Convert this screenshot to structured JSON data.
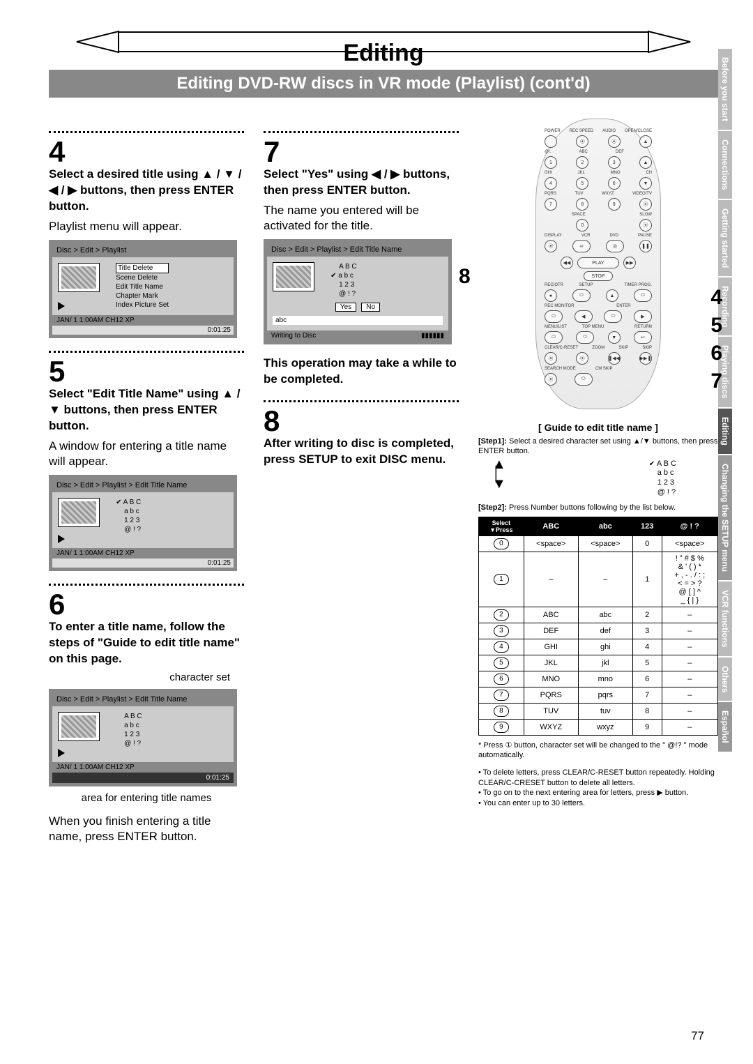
{
  "title": "Editing",
  "subtitle": "Editing DVD-RW discs in VR mode (Playlist) (cont'd)",
  "page_number": "77",
  "side_tabs": [
    {
      "label": "Before you start",
      "cls": "tab-light"
    },
    {
      "label": "Connections",
      "cls": "tab-light"
    },
    {
      "label": "Getting started",
      "cls": "tab-light"
    },
    {
      "label": "Recording",
      "cls": "tab-light"
    },
    {
      "label": "Playing discs",
      "cls": "tab-light"
    },
    {
      "label": "Editing",
      "cls": "tab-dark"
    },
    {
      "label": "Changing the SETUP menu",
      "cls": "tab-mid"
    },
    {
      "label": "VCR functions",
      "cls": "tab-light"
    },
    {
      "label": "Others",
      "cls": "tab-light"
    },
    {
      "label": "Español",
      "cls": "tab-mid"
    }
  ],
  "steps": {
    "4": {
      "heading": "Select a desired title using ▲ / ▼ / ◀ / ▶ buttons, then press ENTER button.",
      "body": "Playlist menu will appear."
    },
    "5": {
      "heading": "Select \"Edit Title Name\" using ▲ / ▼ buttons, then press ENTER button.",
      "body": "A window for entering a title name will appear."
    },
    "6": {
      "heading": "To enter a title name, follow the steps of \"Guide to edit title name\" on this page.",
      "caption1": "character set",
      "caption2": "area for entering title names",
      "body": "When you finish entering a title name, press ENTER button."
    },
    "7": {
      "heading": "Select \"Yes\" using ◀ / ▶ buttons, then press ENTER button.",
      "body": "The name you entered will be activated for the title.",
      "warning": "This operation may take a while to be completed."
    },
    "8": {
      "heading": "After writing to disc is completed, press SETUP to exit DISC menu."
    }
  },
  "ui_box_4": {
    "breadcrumb": "Disc > Edit > Playlist",
    "items": [
      "Title Delete",
      "Scene Delete",
      "Edit Title Name",
      "Chapter Mark",
      "Index Picture Set"
    ],
    "footer": "JAN/ 1   1:00AM  CH12    XP",
    "time": "0:01:25"
  },
  "ui_box_5": {
    "breadcrumb": "Disc > Edit > Playlist > Edit Title Name",
    "charset": [
      "A B C",
      "a b c",
      "1 2 3",
      "@ ! ?"
    ],
    "footer": "JAN/ 1   1:00AM  CH12   XP",
    "time": "0:01:25"
  },
  "ui_box_6": {
    "breadcrumb": "Disc > Edit  > Playlist > Edit Title Name",
    "charset": [
      "A B C",
      "a b c",
      "1 2 3",
      "@ ! ?"
    ],
    "footer": "JAN/ 1   1:00AM  CH12   XP",
    "time": "0:01:25"
  },
  "ui_box_7": {
    "breadcrumb": "Disc > Edit > Playlist > Edit Title Name",
    "charset": [
      "A B C",
      "a b c",
      "1 2 3",
      "@ ! ?"
    ],
    "yes": "Yes",
    "no": "No",
    "input": "abc",
    "status": "Writing to Disc"
  },
  "guide": {
    "title": "[ Guide to edit title name ]",
    "step1_a": "[Step1]: ",
    "step1_b": "Select a desired character set using ▲/▼ buttons, then press ENTER button.",
    "charset": [
      "A B C",
      "a b c",
      "1 2 3",
      "@ ! ?"
    ],
    "step2_a": "[Step2]: ",
    "step2_b": "Press Number buttons following by the list below.",
    "table_header": [
      "ABC",
      "abc",
      "123",
      "@ ! ?"
    ],
    "table_diag": "Select\n▼Press",
    "rows": [
      {
        "n": "0",
        "c": [
          "<space>",
          "<space>",
          "0",
          "<space>"
        ]
      },
      {
        "n": "1",
        "c": [
          "–",
          "–",
          "1",
          "! \" # $ %\n& ' ( ) *\n+ , - . / : ;\n< = > ?\n@ [ ] ^\n_ { | }"
        ]
      },
      {
        "n": "2",
        "c": [
          "ABC",
          "abc",
          "2",
          "–"
        ]
      },
      {
        "n": "3",
        "c": [
          "DEF",
          "def",
          "3",
          "–"
        ]
      },
      {
        "n": "4",
        "c": [
          "GHI",
          "ghi",
          "4",
          "–"
        ]
      },
      {
        "n": "5",
        "c": [
          "JKL",
          "jkl",
          "5",
          "–"
        ]
      },
      {
        "n": "6",
        "c": [
          "MNO",
          "mno",
          "6",
          "–"
        ]
      },
      {
        "n": "7",
        "c": [
          "PQRS",
          "pqrs",
          "7",
          "–"
        ]
      },
      {
        "n": "8",
        "c": [
          "TUV",
          "tuv",
          "8",
          "–"
        ]
      },
      {
        "n": "9",
        "c": [
          "WXYZ",
          "wxyz",
          "9",
          "–"
        ]
      }
    ],
    "asterisk": "* Press ① button, character set will be changed to the \" @!? \" mode automatically.",
    "bullets": [
      "To delete letters, press CLEAR/C-RESET button repeatedly. Holding CLEAR/C-CRESET button to delete all letters.",
      "To go on to the next entering area for letters, press ▶ button.",
      "You can enter up to 30 letters."
    ]
  },
  "remote": {
    "row1_labels": [
      "POWER",
      "REC SPEED",
      "AUDIO",
      "OPEN/CLOSE"
    ],
    "row2_labels": [
      "@/.",
      "ABC",
      "DEF",
      ""
    ],
    "row3_labels": [
      "GHI",
      "JKL",
      "MNO",
      "CH"
    ],
    "row4_labels": [
      "PQRS",
      "TUV",
      "WXYZ",
      "VIDEO/TV"
    ],
    "row5_labels": [
      "",
      "SPACE",
      "",
      "SLOW"
    ],
    "row6_labels": [
      "DISPLAY",
      "VCR",
      "DVD",
      "PAUSE"
    ],
    "play": "PLAY",
    "stop": "STOP",
    "row7_labels": [
      "REC/OTR",
      "SETUP",
      "",
      "TIMER PROG."
    ],
    "row8_labels": [
      "REC MONITOR",
      "",
      "ENTER",
      ""
    ],
    "row9_labels": [
      "MENU/LIST",
      "TOP MENU",
      "",
      "RETURN"
    ],
    "row10_labels": [
      "CLEAR/C-RESET",
      "ZOOM",
      "SKIP",
      "SKIP"
    ],
    "row11_labels": [
      "SEARCH MODE",
      "CM SKIP",
      "",
      ""
    ]
  },
  "side_nums": {
    "left_8": "8",
    "right": [
      "4",
      "5",
      "6",
      "7"
    ]
  },
  "colors": {
    "subtitle_bg": "#888888",
    "subtitle_fg": "#ffffff",
    "ui_border": "#888888",
    "ui_body": "#cccccc",
    "tab_light": "#bbbbbb",
    "tab_mid": "#999999",
    "tab_dark": "#555555"
  }
}
